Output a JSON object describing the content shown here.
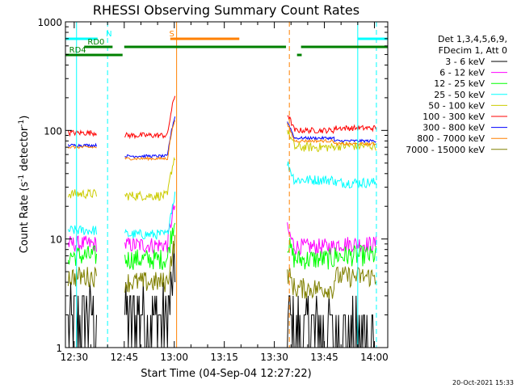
{
  "chart_data": {
    "type": "line",
    "title": "RHESSI Observing Summary Count Rates",
    "xlabel": "Start Time (04-Sep-04 12:27:22)",
    "ylabel_main": "Count Rate (s",
    "ylabel_sup1": "-1",
    "ylabel_mid": " detector",
    "ylabel_sup2": "-1",
    "ylabel_end": ")",
    "yscale": "log",
    "ylim": [
      1,
      1000
    ],
    "xlim_min": [
      747.37,
      844
    ],
    "yticks": [
      {
        "v": 1,
        "label": "1"
      },
      {
        "v": 10,
        "label": "10"
      },
      {
        "v": 100,
        "label": "100"
      },
      {
        "v": 1000,
        "label": "1000"
      }
    ],
    "xticks": [
      {
        "v": 750,
        "label": "12:30"
      },
      {
        "v": 765,
        "label": "12:45"
      },
      {
        "v": 780,
        "label": "13:00"
      },
      {
        "v": 795,
        "label": "13:15"
      },
      {
        "v": 810,
        "label": "13:30"
      },
      {
        "v": 825,
        "label": "13:45"
      },
      {
        "v": 840,
        "label": "14:00"
      }
    ],
    "legend_header": [
      "Det 1,3,4,5,6,9,",
      "FDecim 1, Att 0"
    ],
    "series": [
      {
        "name": "3 - 6 keV",
        "color": "#000000"
      },
      {
        "name": "6 - 12 keV",
        "color": "#ff00ff"
      },
      {
        "name": "12 - 25 keV",
        "color": "#00ff00"
      },
      {
        "name": "25 - 50 keV",
        "color": "#00ffff"
      },
      {
        "name": "50 - 100 keV",
        "color": "#cccc00"
      },
      {
        "name": "100 - 300 keV",
        "color": "#ff0000"
      },
      {
        "name": "300 - 800 keV",
        "color": "#0000ff"
      },
      {
        "name": "800 - 7000 keV",
        "color": "#ff8000"
      },
      {
        "name": "7000 - 15000 keV",
        "color": "#808000"
      }
    ],
    "series_levels": [
      {
        "seg1": 1.9,
        "seg2": 1.9,
        "seg3": 1.5,
        "seg4": 1.3
      },
      {
        "seg1": 9.0,
        "seg2": 8.8,
        "seg3": 8.5,
        "seg4": 9.0
      },
      {
        "seg1": 7.0,
        "seg2": 6.5,
        "seg3": 6.5,
        "seg4": 7.0
      },
      {
        "seg1": 12,
        "seg2": 11,
        "seg3": 35,
        "seg4": 33
      },
      {
        "seg1": 26,
        "seg2": 25,
        "seg3": 70,
        "seg4": 72
      },
      {
        "seg1": 95,
        "seg2": 90,
        "seg3": 100,
        "seg4": 105
      },
      {
        "seg1": 73,
        "seg2": 58,
        "seg3": 85,
        "seg4": 80
      },
      {
        "seg1": 70,
        "seg2": 55,
        "seg3": 80,
        "seg4": 75
      },
      {
        "seg1": 4.5,
        "seg2": 4.0,
        "seg3": 3.5,
        "seg4": 4.5
      }
    ],
    "vlines": [
      {
        "x": 750.7,
        "color": "#00ffff",
        "style": "solid"
      },
      {
        "x": 760.0,
        "color": "#00ffff",
        "style": "dashed"
      },
      {
        "x": 780.7,
        "color": "#ff8000",
        "style": "solid"
      },
      {
        "x": 814.5,
        "color": "#ff8000",
        "style": "dashed"
      },
      {
        "x": 835.0,
        "color": "#00ffff",
        "style": "solid"
      },
      {
        "x": 840.6,
        "color": "#00ffff",
        "style": "dashed"
      }
    ],
    "bars": [
      {
        "x0": 747.5,
        "x1": 757.0,
        "level": 1,
        "color": "#00ffff"
      },
      {
        "x0": 835.0,
        "x1": 844.0,
        "level": 1,
        "color": "#00ffff"
      },
      {
        "x0": 778.8,
        "x1": 799.5,
        "level": 1,
        "color": "#ff8000"
      },
      {
        "x0": 753.0,
        "x1": 761.5,
        "level": 2,
        "color": "#008000"
      },
      {
        "x0": 765.0,
        "x1": 813.5,
        "level": 2,
        "color": "#008000"
      },
      {
        "x0": 818.0,
        "x1": 844.0,
        "level": 2,
        "color": "#008000"
      },
      {
        "x0": 747.5,
        "x1": 764.5,
        "level": 3,
        "color": "#008000"
      },
      {
        "x0": 816.8,
        "x1": 818.2,
        "level": 3,
        "color": "#008000"
      }
    ],
    "bar_labels": [
      {
        "text": "N",
        "x": 759.5,
        "level": 1,
        "color": "#00ffff"
      },
      {
        "text": "S",
        "x": 778.5,
        "level": 1,
        "color": "#ff8000"
      },
      {
        "text": "RD0",
        "x": 754.0,
        "level": 2,
        "color": "#008000"
      },
      {
        "text": "RD4",
        "x": 748.5,
        "level": 3,
        "color": "#008000"
      }
    ],
    "timestamp": "20-Oct-2021 15:33"
  }
}
